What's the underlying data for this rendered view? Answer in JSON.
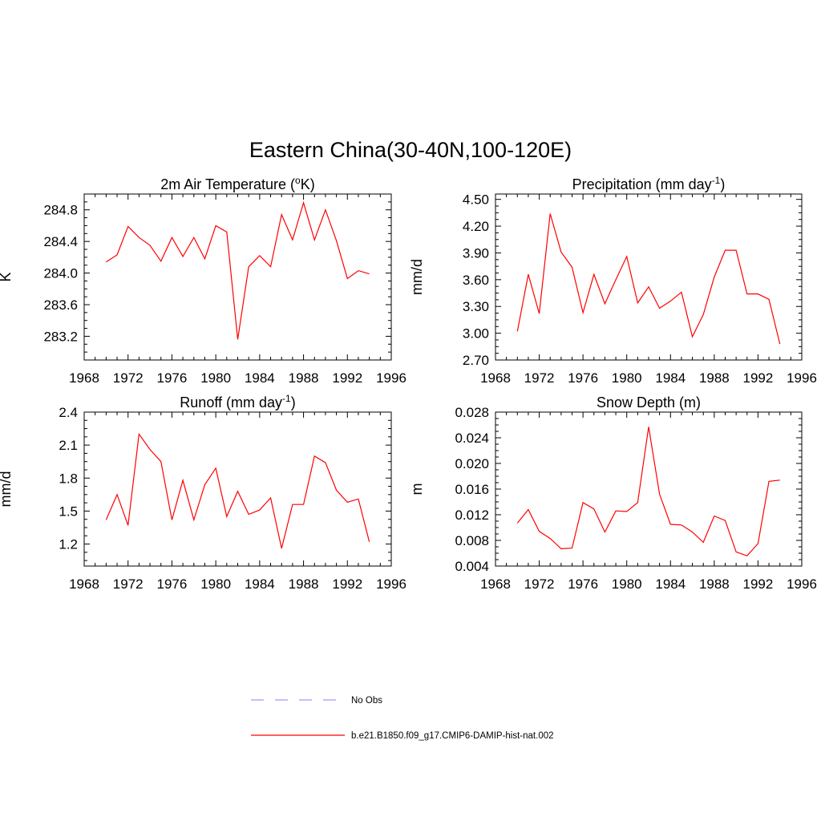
{
  "figure_title": "Eastern China(30-40N,100-120E)",
  "colors": {
    "model_line": "#ff0000",
    "obs_line": "#9999ff",
    "axis": "#000000"
  },
  "legend": [
    {
      "label": "No Obs",
      "style": "dashed",
      "color": "#9999ff"
    },
    {
      "label": "b.e21.B1850.f09_g17.CMIP6-DAMIP-hist-nat.002",
      "style": "solid",
      "color": "#ff0000"
    }
  ],
  "chart_data": [
    {
      "type": "line",
      "title": "2m Air Temperature (",
      "title_sup": "o",
      "title_tail": "K)",
      "ylabel": "K",
      "xlim": [
        1968,
        1996
      ],
      "ylim": [
        282.9,
        285.0
      ],
      "xticks": [
        1968,
        1972,
        1976,
        1980,
        1984,
        1988,
        1992,
        1996
      ],
      "yticks": [
        283.2,
        283.6,
        284.0,
        284.4,
        284.8
      ],
      "ytick_labels": [
        "283.2",
        "283.6",
        "284.0",
        "284.4",
        "284.8"
      ],
      "x": [
        1970,
        1971,
        1972,
        1973,
        1974,
        1975,
        1976,
        1977,
        1978,
        1979,
        1980,
        1981,
        1982,
        1983,
        1984,
        1985,
        1986,
        1987,
        1988,
        1989,
        1990,
        1991,
        1992,
        1993,
        1994
      ],
      "series": [
        {
          "values": [
            284.14,
            284.23,
            284.59,
            284.45,
            284.35,
            284.15,
            284.45,
            284.21,
            284.45,
            284.18,
            284.6,
            284.52,
            283.16,
            284.08,
            284.22,
            284.08,
            284.74,
            284.42,
            284.89,
            284.42,
            284.8,
            284.41,
            283.93,
            284.03,
            283.99
          ]
        }
      ]
    },
    {
      "type": "line",
      "title": "Precipitation (mm day",
      "title_sup": "-1",
      "title_tail": ")",
      "ylabel": "mm/d",
      "xlim": [
        1968,
        1996
      ],
      "ylim": [
        2.7,
        4.56
      ],
      "xticks": [
        1968,
        1972,
        1976,
        1980,
        1984,
        1988,
        1992,
        1996
      ],
      "yticks": [
        2.7,
        3.0,
        3.3,
        3.6,
        3.9,
        4.2,
        4.5
      ],
      "ytick_labels": [
        "2.70",
        "3.00",
        "3.30",
        "3.60",
        "3.90",
        "4.20",
        "4.50"
      ],
      "x": [
        1970,
        1971,
        1972,
        1973,
        1974,
        1975,
        1976,
        1977,
        1978,
        1979,
        1980,
        1981,
        1982,
        1983,
        1984,
        1985,
        1986,
        1987,
        1988,
        1989,
        1990,
        1991,
        1992,
        1993,
        1994
      ],
      "series": [
        {
          "values": [
            3.02,
            3.66,
            3.22,
            4.34,
            3.91,
            3.74,
            3.23,
            3.66,
            3.33,
            3.6,
            3.86,
            3.34,
            3.52,
            3.28,
            3.36,
            3.46,
            2.96,
            3.21,
            3.63,
            3.93,
            3.93,
            3.44,
            3.44,
            3.38,
            2.88
          ]
        }
      ]
    },
    {
      "type": "line",
      "title": "Runoff (mm day",
      "title_sup": "-1",
      "title_tail": ")",
      "ylabel": "mm/d",
      "xlim": [
        1968,
        1996
      ],
      "ylim": [
        1.0,
        2.4
      ],
      "xticks": [
        1968,
        1972,
        1976,
        1980,
        1984,
        1988,
        1992,
        1996
      ],
      "yticks": [
        1.2,
        1.5,
        1.8,
        2.1,
        2.4
      ],
      "ytick_labels": [
        "1.2",
        "1.5",
        "1.8",
        "2.1",
        "2.4"
      ],
      "x": [
        1970,
        1971,
        1972,
        1973,
        1974,
        1975,
        1976,
        1977,
        1978,
        1979,
        1980,
        1981,
        1982,
        1983,
        1984,
        1985,
        1986,
        1987,
        1988,
        1989,
        1990,
        1991,
        1992,
        1993,
        1994
      ],
      "series": [
        {
          "values": [
            1.42,
            1.65,
            1.37,
            2.2,
            2.06,
            1.95,
            1.42,
            1.78,
            1.42,
            1.74,
            1.89,
            1.45,
            1.68,
            1.47,
            1.51,
            1.62,
            1.16,
            1.56,
            1.56,
            2.0,
            1.94,
            1.69,
            1.58,
            1.61,
            1.22
          ]
        }
      ]
    },
    {
      "type": "line",
      "title": "Snow Depth (m)",
      "title_sup": "",
      "title_tail": "",
      "ylabel": "m",
      "xlim": [
        1968,
        1996
      ],
      "ylim": [
        0.004,
        0.028
      ],
      "xticks": [
        1968,
        1972,
        1976,
        1980,
        1984,
        1988,
        1992,
        1996
      ],
      "yticks": [
        0.004,
        0.008,
        0.012,
        0.016,
        0.02,
        0.024,
        0.028
      ],
      "ytick_labels": [
        "0.004",
        "0.008",
        "0.012",
        "0.016",
        "0.020",
        "0.024",
        "0.028"
      ],
      "x": [
        1970,
        1971,
        1972,
        1973,
        1974,
        1975,
        1976,
        1977,
        1978,
        1979,
        1980,
        1981,
        1982,
        1983,
        1984,
        1985,
        1986,
        1987,
        1988,
        1989,
        1990,
        1991,
        1992,
        1993,
        1994
      ],
      "series": [
        {
          "values": [
            0.0107,
            0.0128,
            0.0094,
            0.0083,
            0.0067,
            0.0068,
            0.0139,
            0.0129,
            0.0093,
            0.0126,
            0.0125,
            0.0139,
            0.0257,
            0.0152,
            0.0105,
            0.0104,
            0.0093,
            0.0077,
            0.0118,
            0.0111,
            0.0062,
            0.0056,
            0.0075,
            0.0172,
            0.0174
          ]
        }
      ]
    }
  ]
}
